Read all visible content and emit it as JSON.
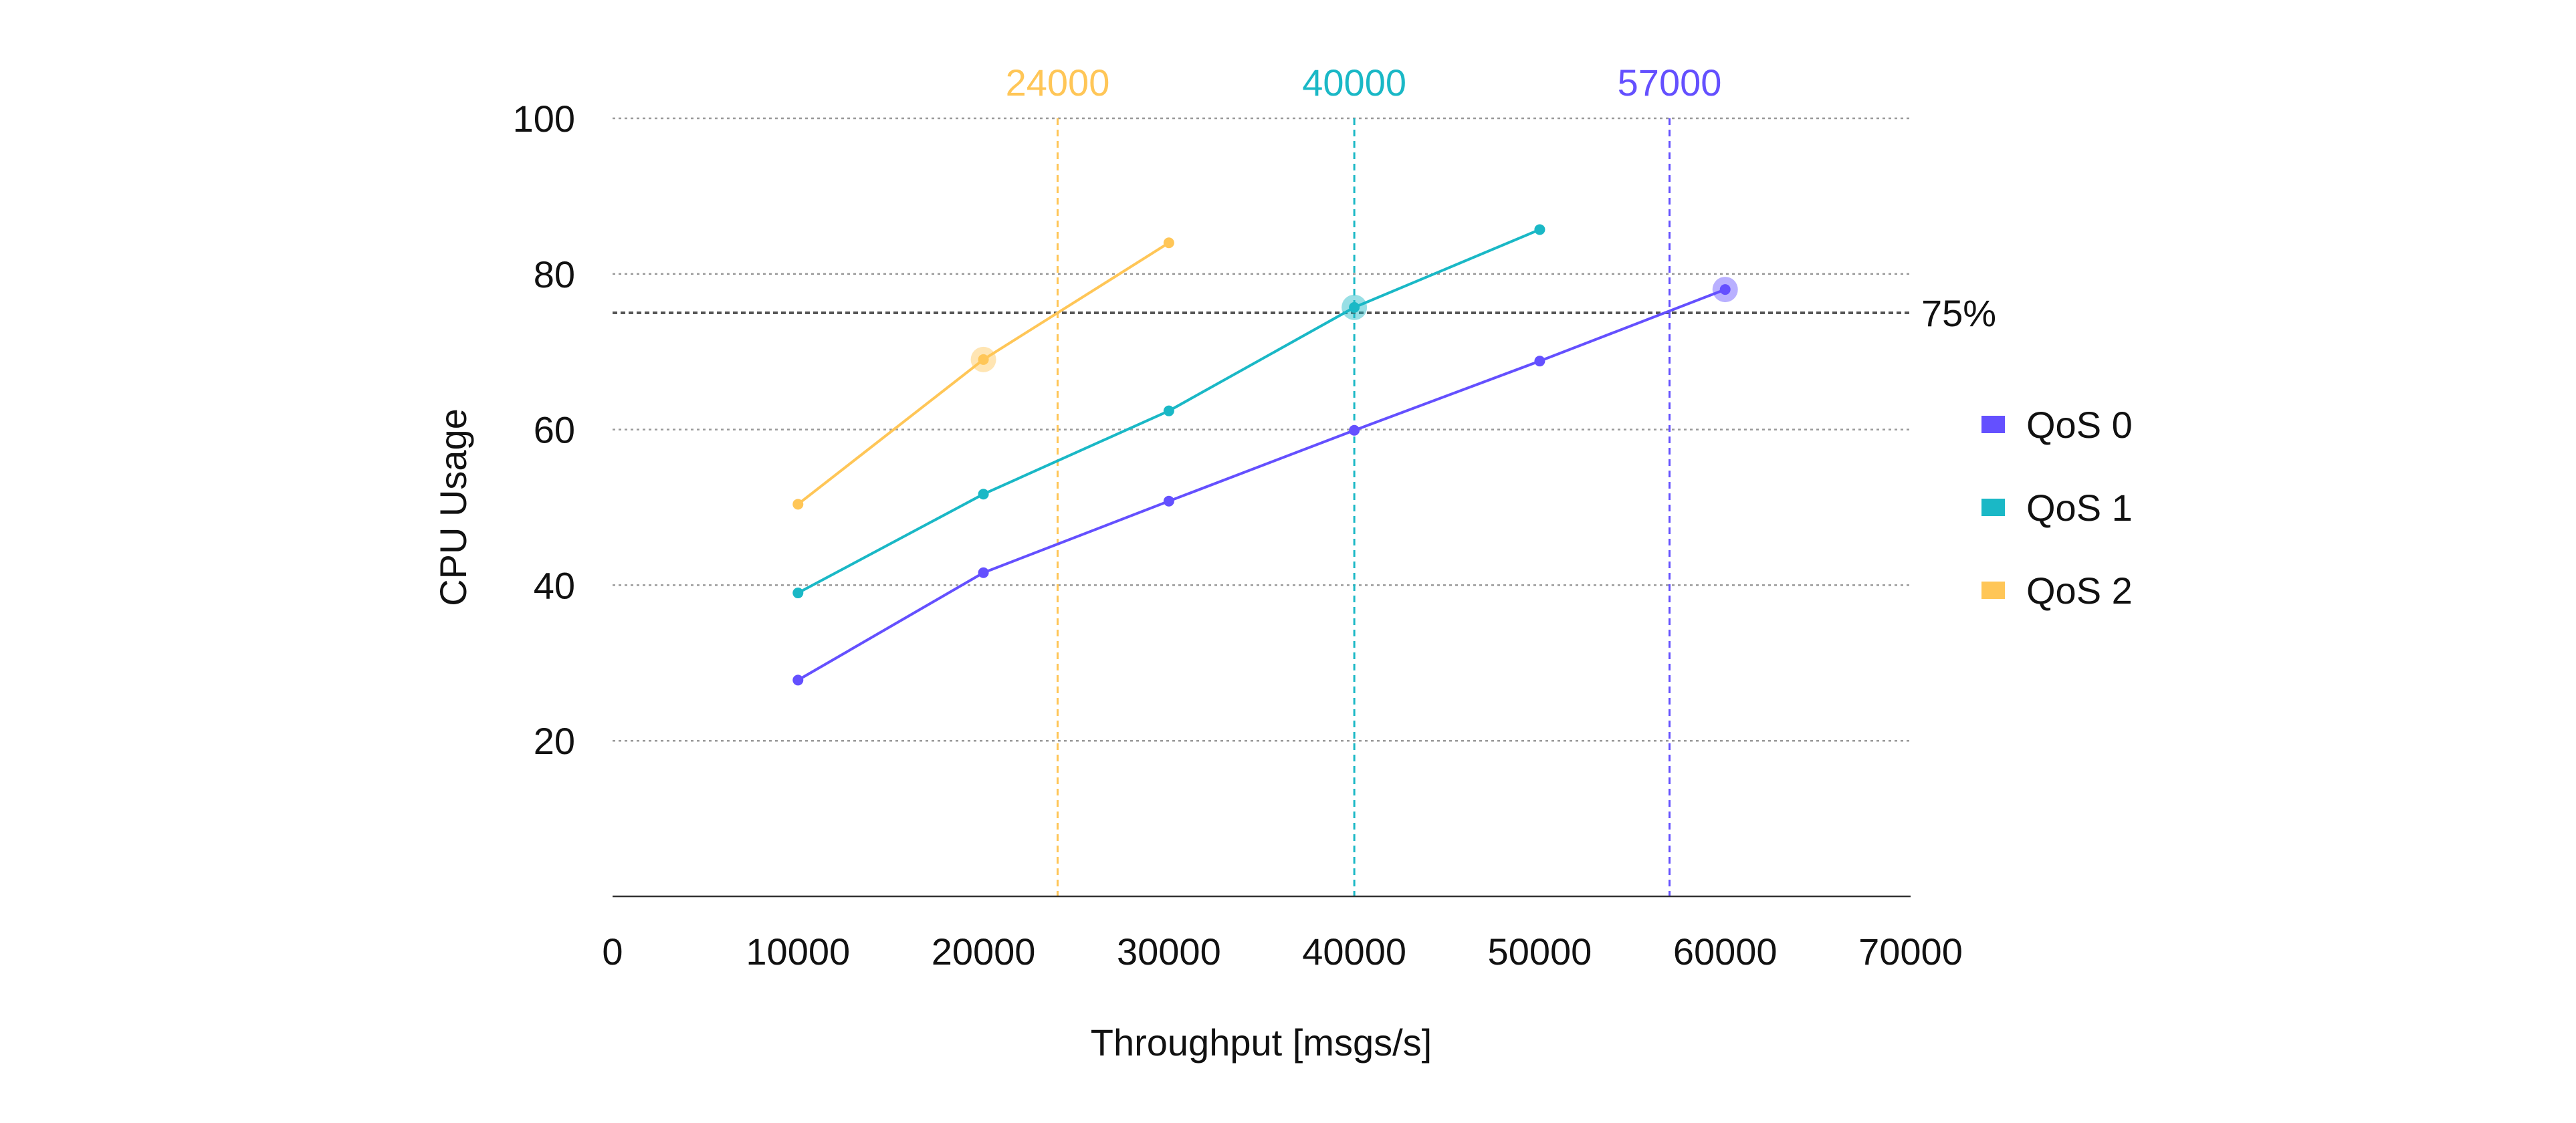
{
  "chart_data": {
    "type": "line",
    "title": "",
    "xlabel": "Throughput [msgs/s]",
    "ylabel": "CPU Usage",
    "xlim": [
      0,
      70000
    ],
    "ylim": [
      0,
      100
    ],
    "x_ticks": [
      0,
      10000,
      20000,
      30000,
      40000,
      50000,
      60000,
      70000
    ],
    "y_ticks": [
      20,
      40,
      60,
      80,
      100
    ],
    "grid": "horizontal dotted",
    "legend_position": "right",
    "x": [
      10000,
      20000,
      30000,
      40000,
      50000,
      60000
    ],
    "series": [
      {
        "name": "QoS 0",
        "color": "#6450FF",
        "values": [
          27.8,
          41.6,
          50.8,
          59.9,
          68.8,
          78.0
        ],
        "highlight_index": 5
      },
      {
        "name": "QoS 1",
        "color": "#1AB8C6",
        "values": [
          39.0,
          51.7,
          62.4,
          75.7,
          85.7,
          null
        ],
        "highlight_index": 3
      },
      {
        "name": "QoS 2",
        "color": "#FFC657",
        "values": [
          50.4,
          69.0,
          84.0,
          null,
          null,
          null
        ],
        "highlight_index": 1
      }
    ],
    "threshold": {
      "value": 75,
      "label": "75%",
      "color": "#555555"
    },
    "vertical_markers": [
      {
        "x": 24000,
        "label": "24000",
        "color": "#FFC657"
      },
      {
        "x": 40000,
        "label": "40000",
        "color": "#1AB8C6"
      },
      {
        "x": 57000,
        "label": "57000",
        "color": "#6450FF"
      }
    ]
  }
}
